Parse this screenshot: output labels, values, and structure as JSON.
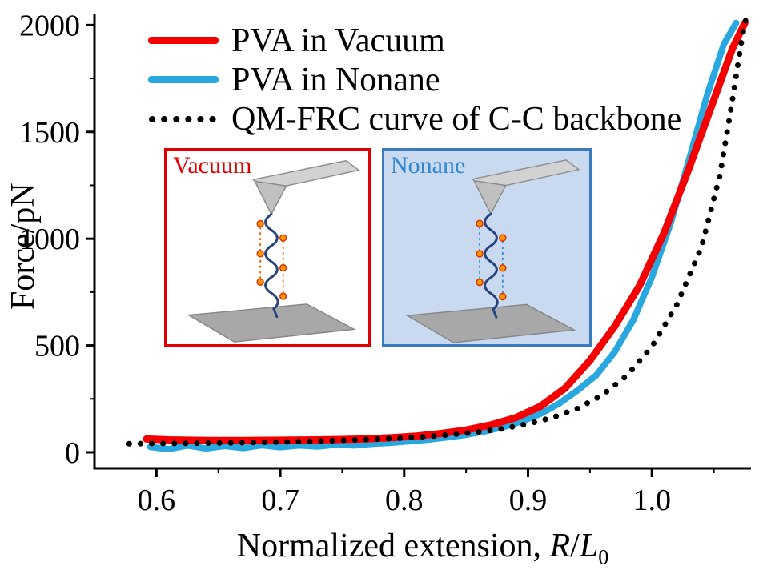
{
  "figure": {
    "background": "#ffffff"
  },
  "legend": {
    "items": [
      {
        "label": "PVA in Vacuum",
        "color": "#f40000",
        "style": "solid"
      },
      {
        "label": "PVA in Nonane",
        "color": "#29a8e0",
        "style": "solid"
      },
      {
        "label": "QM-FRC curve of C-C backbone",
        "color": "#000000",
        "style": "dotted"
      }
    ]
  },
  "insets": [
    {
      "label": "Vacuum",
      "label_color": "#e00000",
      "border_color": "#e00000",
      "bg": "#ffffff",
      "bond_color": "#e06000"
    },
    {
      "label": "Nonane",
      "label_color": "#2e86d4",
      "border_color": "#3a7bbf",
      "bg": "#c9d9ef",
      "bond_color": "#2e86d4"
    }
  ],
  "chart_data": {
    "type": "line",
    "title": "",
    "ylabel": "Force/pN",
    "xlabel_parts": {
      "prefix": "Normalized extension, ",
      "r": "R",
      "slash": "/",
      "l": "L",
      "sub": "0"
    },
    "xlim": [
      0.55,
      1.08
    ],
    "ylim": [
      -75,
      2050
    ],
    "xticks": [
      {
        "v": 0.6,
        "label": "0.6"
      },
      {
        "v": 0.7,
        "label": "0.7"
      },
      {
        "v": 0.8,
        "label": "0.8"
      },
      {
        "v": 0.9,
        "label": "0.9"
      },
      {
        "v": 1.0,
        "label": "1.0"
      }
    ],
    "yticks": [
      {
        "v": 0,
        "label": "0"
      },
      {
        "v": 500,
        "label": "500"
      },
      {
        "v": 1000,
        "label": "1000"
      },
      {
        "v": 1500,
        "label": "1500"
      },
      {
        "v": 2000,
        "label": "2000"
      }
    ],
    "xminor": [
      0.65,
      0.75,
      0.85,
      0.95,
      1.05
    ],
    "yminor": [
      250,
      750,
      1250,
      1750
    ],
    "grid": false,
    "legend_position": "upper-left",
    "series": [
      {
        "name": "PVA in Nonane",
        "color": "#29a8e0",
        "line_width": 8,
        "style": "solid",
        "points": [
          [
            0.595,
            25
          ],
          [
            0.61,
            15
          ],
          [
            0.625,
            32
          ],
          [
            0.64,
            18
          ],
          [
            0.655,
            30
          ],
          [
            0.67,
            20
          ],
          [
            0.685,
            33
          ],
          [
            0.7,
            24
          ],
          [
            0.715,
            32
          ],
          [
            0.73,
            27
          ],
          [
            0.745,
            36
          ],
          [
            0.76,
            32
          ],
          [
            0.775,
            40
          ],
          [
            0.79,
            45
          ],
          [
            0.805,
            52
          ],
          [
            0.82,
            60
          ],
          [
            0.835,
            70
          ],
          [
            0.85,
            82
          ],
          [
            0.865,
            98
          ],
          [
            0.88,
            118
          ],
          [
            0.895,
            145
          ],
          [
            0.91,
            180
          ],
          [
            0.925,
            228
          ],
          [
            0.94,
            290
          ],
          [
            0.955,
            360
          ],
          [
            0.97,
            470
          ],
          [
            0.985,
            620
          ],
          [
            1.0,
            820
          ],
          [
            1.015,
            1070
          ],
          [
            1.03,
            1370
          ],
          [
            1.045,
            1680
          ],
          [
            1.058,
            1910
          ],
          [
            1.068,
            2010
          ]
        ]
      },
      {
        "name": "PVA in Vacuum",
        "color": "#f40000",
        "line_width": 9,
        "style": "solid",
        "points": [
          [
            0.592,
            62
          ],
          [
            0.61,
            58
          ],
          [
            0.63,
            56
          ],
          [
            0.65,
            55
          ],
          [
            0.67,
            55
          ],
          [
            0.69,
            56
          ],
          [
            0.71,
            57
          ],
          [
            0.73,
            58
          ],
          [
            0.75,
            60
          ],
          [
            0.77,
            63
          ],
          [
            0.79,
            68
          ],
          [
            0.81,
            76
          ],
          [
            0.83,
            88
          ],
          [
            0.85,
            104
          ],
          [
            0.87,
            128
          ],
          [
            0.89,
            162
          ],
          [
            0.91,
            215
          ],
          [
            0.93,
            300
          ],
          [
            0.95,
            430
          ],
          [
            0.97,
            590
          ],
          [
            0.99,
            780
          ],
          [
            1.01,
            1030
          ],
          [
            1.03,
            1330
          ],
          [
            1.05,
            1650
          ],
          [
            1.065,
            1890
          ],
          [
            1.075,
            2010
          ]
        ]
      },
      {
        "name": "QM-FRC curve of C-C backbone",
        "color": "#000000",
        "line_width": 7,
        "style": "dotted",
        "points": [
          [
            0.578,
            40
          ],
          [
            0.6,
            41
          ],
          [
            0.62,
            42
          ],
          [
            0.64,
            43
          ],
          [
            0.66,
            44
          ],
          [
            0.68,
            46
          ],
          [
            0.7,
            48
          ],
          [
            0.72,
            51
          ],
          [
            0.74,
            54
          ],
          [
            0.76,
            58
          ],
          [
            0.78,
            62
          ],
          [
            0.8,
            67
          ],
          [
            0.82,
            74
          ],
          [
            0.84,
            83
          ],
          [
            0.86,
            95
          ],
          [
            0.88,
            111
          ],
          [
            0.9,
            133
          ],
          [
            0.92,
            163
          ],
          [
            0.94,
            205
          ],
          [
            0.96,
            268
          ],
          [
            0.98,
            360
          ],
          [
            1.0,
            495
          ],
          [
            1.02,
            690
          ],
          [
            1.04,
            960
          ],
          [
            1.055,
            1300
          ],
          [
            1.065,
            1650
          ],
          [
            1.073,
            1950
          ],
          [
            1.077,
            2060
          ]
        ]
      }
    ]
  }
}
